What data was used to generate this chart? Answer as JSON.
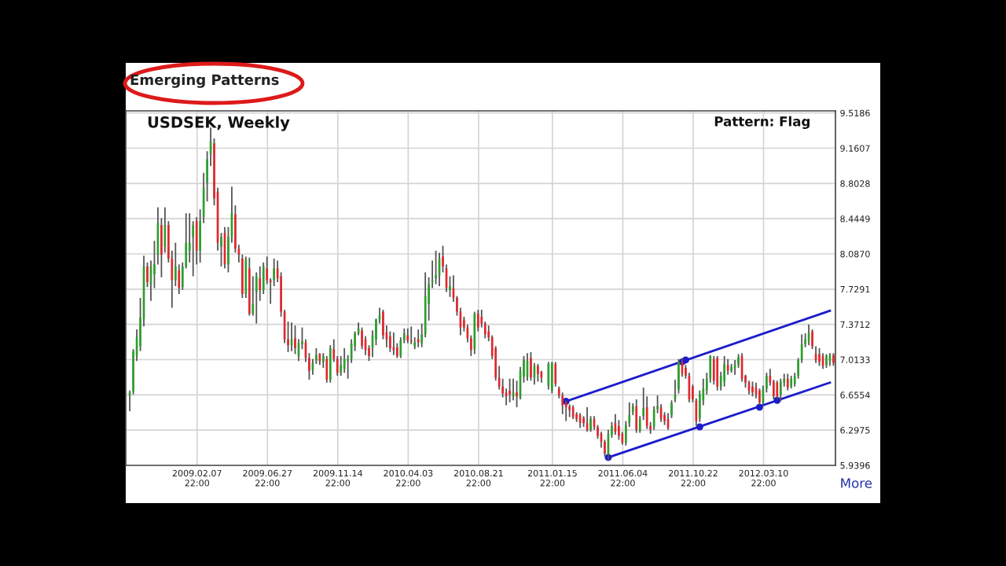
{
  "chart_data": {
    "type": "candlestick",
    "title": "USDSEK, Weekly",
    "annotations": [
      "Emerging Patterns",
      "Pattern: Flag",
      "More"
    ],
    "x": [
      "2008-09-27",
      "2008-10-04",
      "2008-10-11",
      "2008-10-18",
      "2008-10-25",
      "2008-11-01",
      "2008-11-08",
      "2008-11-15",
      "2008-11-22",
      "2008-11-29",
      "2008-12-06",
      "2008-12-13",
      "2008-12-20",
      "2008-12-27",
      "2009-01-03",
      "2009-01-10",
      "2009-01-17",
      "2009-01-24",
      "2009-01-31",
      "2009-02-07",
      "2009-02-14",
      "2009-02-21",
      "2009-02-28",
      "2009-03-07",
      "2009-03-14",
      "2009-03-21",
      "2009-03-28",
      "2009-04-04",
      "2009-04-11",
      "2009-04-18",
      "2009-04-25",
      "2009-05-02",
      "2009-05-09",
      "2009-05-16",
      "2009-05-23",
      "2009-05-30",
      "2009-06-06",
      "2009-06-13",
      "2009-06-20",
      "2009-06-27",
      "2009-07-04",
      "2009-07-11",
      "2009-07-18",
      "2009-07-25",
      "2009-08-01",
      "2009-08-08",
      "2009-08-15",
      "2009-08-22",
      "2009-08-29",
      "2009-09-05",
      "2009-09-12",
      "2009-09-19",
      "2009-09-26",
      "2009-10-03",
      "2009-10-10",
      "2009-10-17",
      "2009-10-24",
      "2009-10-31",
      "2009-11-07",
      "2009-11-14",
      "2009-11-21",
      "2009-11-28",
      "2009-12-05",
      "2009-12-12",
      "2009-12-19",
      "2009-12-26",
      "2010-01-02",
      "2010-01-09",
      "2010-01-16",
      "2010-01-23",
      "2010-01-30",
      "2010-02-06",
      "2010-02-13",
      "2010-02-20",
      "2010-02-27",
      "2010-03-06",
      "2010-03-13",
      "2010-03-20",
      "2010-03-27",
      "2010-04-03",
      "2010-04-10",
      "2010-04-17",
      "2010-04-24",
      "2010-05-01",
      "2010-05-08",
      "2010-05-15",
      "2010-05-22",
      "2010-05-29",
      "2010-06-05",
      "2010-06-12",
      "2010-06-19",
      "2010-06-26",
      "2010-07-03",
      "2010-07-10",
      "2010-07-17",
      "2010-07-24",
      "2010-07-31",
      "2010-08-07",
      "2010-08-14",
      "2010-08-21",
      "2010-08-28",
      "2010-09-04",
      "2010-09-11",
      "2010-09-18",
      "2010-09-25",
      "2010-10-02",
      "2010-10-09",
      "2010-10-16",
      "2010-10-23",
      "2010-10-30",
      "2010-11-06",
      "2010-11-13",
      "2010-11-20",
      "2010-11-27",
      "2010-12-04",
      "2010-12-11",
      "2010-12-18",
      "2010-12-25",
      "2011-01-08",
      "2011-01-15",
      "2011-01-22",
      "2011-01-29",
      "2011-02-05",
      "2011-02-12",
      "2011-02-19",
      "2011-02-26",
      "2011-03-05",
      "2011-03-12",
      "2011-03-19",
      "2011-03-26",
      "2011-04-02",
      "2011-04-09",
      "2011-04-16",
      "2011-04-23",
      "2011-04-30",
      "2011-05-07",
      "2011-05-14",
      "2011-05-21",
      "2011-05-28",
      "2011-06-04",
      "2011-06-11",
      "2011-06-18",
      "2011-06-25",
      "2011-07-02",
      "2011-07-09",
      "2011-07-16",
      "2011-07-23",
      "2011-07-30",
      "2011-08-06",
      "2011-08-13",
      "2011-08-20",
      "2011-08-27",
      "2011-09-03",
      "2011-09-10",
      "2011-09-17",
      "2011-09-24",
      "2011-10-01",
      "2011-10-08",
      "2011-10-15",
      "2011-10-22",
      "2011-10-29",
      "2011-11-05",
      "2011-11-12",
      "2011-11-19",
      "2011-11-26",
      "2011-12-03",
      "2011-12-10",
      "2011-12-17",
      "2011-12-24",
      "2011-12-31",
      "2012-01-07",
      "2012-01-14",
      "2012-01-21",
      "2012-01-28",
      "2012-02-04",
      "2012-02-11",
      "2012-02-18",
      "2012-02-25",
      "2012-03-03",
      "2012-03-10",
      "2012-03-17",
      "2012-03-24",
      "2012-03-31",
      "2012-04-07",
      "2012-04-14",
      "2012-04-21",
      "2012-04-28",
      "2012-05-05",
      "2012-05-12",
      "2012-05-19",
      "2012-05-26",
      "2012-06-02",
      "2012-06-09",
      "2012-06-16",
      "2012-06-23",
      "2012-06-30",
      "2012-07-07",
      "2012-07-14",
      "2012-07-21",
      "2012-07-28"
    ],
    "ohlc": [
      [
        6.65,
        6.7,
        6.49,
        6.68
      ],
      [
        6.69,
        7.12,
        6.66,
        7.1
      ],
      [
        7.05,
        7.32,
        7.0,
        7.24
      ],
      [
        7.15,
        7.64,
        7.1,
        7.44
      ],
      [
        7.43,
        8.07,
        7.35,
        7.96
      ],
      [
        7.96,
        8.0,
        7.75,
        7.8
      ],
      [
        7.78,
        8.02,
        7.61,
        7.96
      ],
      [
        7.88,
        8.22,
        7.74,
        7.98
      ],
      [
        8.08,
        8.56,
        7.98,
        8.4
      ],
      [
        8.38,
        8.45,
        7.85,
        8.08
      ],
      [
        8.16,
        8.56,
        8.1,
        8.38
      ],
      [
        8.38,
        8.42,
        8.0,
        8.04
      ],
      [
        8.04,
        8.12,
        7.54,
        7.82
      ],
      [
        7.82,
        8.2,
        7.76,
        7.96
      ],
      [
        7.92,
        7.98,
        7.68,
        7.74
      ],
      [
        7.75,
        8.0,
        7.72,
        7.96
      ],
      [
        7.96,
        8.5,
        7.94,
        8.2
      ],
      [
        8.12,
        8.5,
        8.0,
        8.2
      ],
      [
        8.26,
        8.42,
        7.86,
        8.38
      ],
      [
        8.42,
        8.46,
        7.98,
        8.12
      ],
      [
        8.12,
        8.54,
        8.0,
        8.42
      ],
      [
        8.46,
        8.91,
        8.4,
        8.76
      ],
      [
        8.81,
        9.13,
        8.62,
        9.05
      ],
      [
        9.1,
        9.37,
        8.98,
        9.23
      ],
      [
        9.21,
        9.26,
        8.58,
        8.65
      ],
      [
        8.72,
        8.76,
        8.12,
        8.2
      ],
      [
        8.16,
        8.3,
        7.96,
        8.26
      ],
      [
        8.3,
        8.36,
        7.94,
        7.98
      ],
      [
        7.98,
        8.36,
        7.9,
        8.26
      ],
      [
        8.26,
        8.77,
        8.2,
        8.5
      ],
      [
        8.49,
        8.58,
        8.1,
        8.14
      ],
      [
        8.14,
        8.18,
        8.0,
        8.08
      ],
      [
        8.04,
        8.08,
        7.64,
        7.68
      ],
      [
        7.68,
        8.06,
        7.64,
        8.03
      ],
      [
        7.94,
        8.05,
        7.46,
        7.48
      ],
      [
        7.48,
        7.86,
        7.46,
        7.58
      ],
      [
        7.7,
        7.9,
        7.38,
        7.86
      ],
      [
        7.84,
        7.96,
        7.61,
        7.72
      ],
      [
        7.72,
        8.0,
        7.68,
        7.96
      ],
      [
        7.94,
        8.06,
        7.78,
        7.82
      ],
      [
        7.82,
        7.84,
        7.58,
        7.8
      ],
      [
        7.82,
        8.04,
        7.76,
        7.94
      ],
      [
        7.94,
        8.02,
        7.8,
        7.84
      ],
      [
        7.86,
        7.9,
        7.45,
        7.5
      ],
      [
        7.5,
        7.52,
        7.18,
        7.22
      ],
      [
        7.22,
        7.4,
        7.09,
        7.16
      ],
      [
        7.16,
        7.39,
        7.1,
        7.22
      ],
      [
        7.23,
        7.36,
        7.07,
        7.13
      ],
      [
        7.05,
        7.22,
        7.0,
        7.18
      ],
      [
        7.17,
        7.34,
        7.12,
        7.2
      ],
      [
        7.19,
        7.22,
        6.99,
        7.03
      ],
      [
        7.03,
        7.08,
        6.81,
        6.9
      ],
      [
        6.91,
        7.02,
        6.86,
        6.98
      ],
      [
        7.0,
        7.13,
        6.97,
        7.06
      ],
      [
        7.07,
        7.08,
        6.96,
        7.0
      ],
      [
        6.99,
        7.08,
        6.93,
        7.05
      ],
      [
        7.02,
        7.05,
        6.78,
        6.81
      ],
      [
        6.81,
        7.16,
        6.78,
        7.13
      ],
      [
        7.12,
        7.22,
        6.99,
        7.02
      ],
      [
        7.02,
        7.05,
        6.85,
        6.88
      ],
      [
        6.88,
        7.05,
        6.85,
        6.96
      ],
      [
        6.92,
        7.13,
        6.88,
        7.02
      ],
      [
        7.0,
        7.06,
        6.82,
        7.02
      ],
      [
        7.02,
        7.22,
        6.98,
        7.18
      ],
      [
        7.15,
        7.3,
        7.1,
        7.28
      ],
      [
        7.28,
        7.39,
        7.26,
        7.33
      ],
      [
        7.31,
        7.34,
        7.12,
        7.15
      ],
      [
        7.22,
        7.25,
        7.06,
        7.11
      ],
      [
        7.13,
        7.16,
        7.0,
        7.05
      ],
      [
        7.13,
        7.31,
        7.04,
        7.26
      ],
      [
        7.22,
        7.43,
        7.16,
        7.42
      ],
      [
        7.42,
        7.54,
        7.38,
        7.46
      ],
      [
        7.5,
        7.52,
        7.22,
        7.26
      ],
      [
        7.29,
        7.36,
        7.14,
        7.22
      ],
      [
        7.25,
        7.3,
        7.09,
        7.13
      ],
      [
        7.14,
        7.29,
        7.06,
        7.11
      ],
      [
        7.14,
        7.18,
        7.03,
        7.05
      ],
      [
        7.05,
        7.24,
        7.03,
        7.21
      ],
      [
        7.21,
        7.33,
        7.18,
        7.28
      ],
      [
        7.26,
        7.33,
        7.18,
        7.21
      ],
      [
        7.21,
        7.35,
        7.17,
        7.2
      ],
      [
        7.15,
        7.24,
        7.12,
        7.19
      ],
      [
        7.22,
        7.32,
        7.14,
        7.19
      ],
      [
        7.18,
        7.38,
        7.14,
        7.27
      ],
      [
        7.27,
        7.9,
        7.24,
        7.66
      ],
      [
        7.58,
        7.85,
        7.41,
        7.78
      ],
      [
        7.8,
        8.02,
        7.74,
        7.82
      ],
      [
        7.84,
        8.12,
        7.78,
        7.87
      ],
      [
        7.87,
        8.1,
        7.76,
        8.04
      ],
      [
        8.06,
        8.17,
        7.9,
        7.96
      ],
      [
        7.94,
        7.98,
        7.7,
        7.74
      ],
      [
        7.72,
        7.86,
        7.65,
        7.76
      ],
      [
        7.74,
        7.87,
        7.6,
        7.64
      ],
      [
        7.64,
        7.66,
        7.46,
        7.5
      ],
      [
        7.5,
        7.54,
        7.26,
        7.34
      ],
      [
        7.42,
        7.45,
        7.3,
        7.34
      ],
      [
        7.34,
        7.37,
        7.19,
        7.23
      ],
      [
        7.23,
        7.26,
        7.05,
        7.11
      ],
      [
        7.12,
        7.5,
        7.07,
        7.48
      ],
      [
        7.48,
        7.52,
        7.3,
        7.34
      ],
      [
        7.45,
        7.52,
        7.34,
        7.38
      ],
      [
        7.38,
        7.4,
        7.23,
        7.27
      ],
      [
        7.3,
        7.36,
        7.2,
        7.24
      ],
      [
        7.24,
        7.26,
        7.02,
        7.05
      ],
      [
        7.13,
        7.15,
        6.8,
        6.83
      ],
      [
        6.83,
        6.95,
        6.71,
        6.74
      ],
      [
        6.74,
        6.82,
        6.63,
        6.67
      ],
      [
        6.68,
        6.72,
        6.55,
        6.64
      ],
      [
        6.7,
        6.82,
        6.58,
        6.66
      ],
      [
        6.64,
        6.82,
        6.6,
        6.68
      ],
      [
        6.68,
        6.8,
        6.53,
        6.64
      ],
      [
        6.63,
        6.94,
        6.61,
        6.9
      ],
      [
        6.84,
        7.05,
        6.78,
        7.01
      ],
      [
        6.84,
        7.08,
        6.8,
        7.0
      ],
      [
        7.03,
        7.09,
        6.8,
        6.83
      ],
      [
        6.83,
        6.98,
        6.76,
        6.95
      ],
      [
        6.95,
        6.97,
        6.79,
        6.87
      ],
      [
        6.89,
        6.9,
        6.78,
        6.83
      ],
      [
        6.75,
        6.99,
        6.71,
        6.97
      ],
      [
        6.7,
        6.99,
        6.67,
        6.98
      ],
      [
        6.97,
        6.99,
        6.74,
        6.77
      ],
      [
        6.72,
        6.74,
        6.62,
        6.65
      ],
      [
        6.65,
        6.68,
        6.46,
        6.55
      ],
      [
        6.58,
        6.6,
        6.39,
        6.53
      ],
      [
        6.54,
        6.56,
        6.43,
        6.5
      ],
      [
        6.53,
        6.55,
        6.41,
        6.43
      ],
      [
        6.46,
        6.48,
        6.38,
        6.41
      ],
      [
        6.45,
        6.47,
        6.32,
        6.37
      ],
      [
        6.42,
        6.44,
        6.33,
        6.37
      ],
      [
        6.37,
        6.53,
        6.28,
        6.3
      ],
      [
        6.3,
        6.44,
        6.28,
        6.41
      ],
      [
        6.41,
        6.44,
        6.3,
        6.33
      ],
      [
        6.33,
        6.35,
        6.21,
        6.24
      ],
      [
        6.26,
        6.28,
        6.12,
        6.18
      ],
      [
        6.18,
        6.2,
        6.03,
        6.06
      ],
      [
        6.05,
        6.3,
        5.99,
        6.26
      ],
      [
        6.25,
        6.38,
        6.22,
        6.34
      ],
      [
        6.37,
        6.46,
        6.25,
        6.28
      ],
      [
        6.34,
        6.4,
        6.2,
        6.24
      ],
      [
        6.26,
        6.28,
        6.15,
        6.17
      ],
      [
        6.17,
        6.39,
        6.14,
        6.35
      ],
      [
        6.37,
        6.58,
        6.33,
        6.45
      ],
      [
        6.48,
        6.57,
        6.45,
        6.54
      ],
      [
        6.54,
        6.61,
        6.27,
        6.3
      ],
      [
        6.29,
        6.44,
        6.27,
        6.41
      ],
      [
        6.44,
        6.73,
        6.4,
        6.52
      ],
      [
        6.53,
        6.64,
        6.31,
        6.34
      ],
      [
        6.34,
        6.38,
        6.26,
        6.3
      ],
      [
        6.33,
        6.54,
        6.3,
        6.51
      ],
      [
        6.51,
        6.65,
        6.47,
        6.54
      ],
      [
        6.53,
        6.56,
        6.38,
        6.41
      ],
      [
        6.45,
        6.48,
        6.35,
        6.39
      ],
      [
        6.41,
        6.47,
        6.3,
        6.32
      ],
      [
        6.45,
        6.6,
        6.42,
        6.57
      ],
      [
        6.61,
        6.81,
        6.58,
        6.66
      ],
      [
        6.71,
        7.02,
        6.67,
        6.99
      ],
      [
        6.99,
        7.03,
        6.84,
        6.87
      ],
      [
        6.93,
        6.96,
        6.82,
        6.85
      ],
      [
        6.85,
        6.88,
        6.58,
        6.61
      ],
      [
        6.74,
        6.76,
        6.58,
        6.61
      ],
      [
        6.6,
        6.62,
        6.34,
        6.39
      ],
      [
        6.42,
        6.7,
        6.38,
        6.66
      ],
      [
        6.6,
        6.82,
        6.55,
        6.72
      ],
      [
        6.7,
        6.88,
        6.66,
        6.82
      ],
      [
        6.82,
        7.06,
        6.78,
        7.05
      ],
      [
        7.02,
        7.05,
        6.76,
        6.8
      ],
      [
        7.03,
        7.05,
        6.7,
        6.74
      ],
      [
        6.74,
        6.89,
        6.7,
        6.85
      ],
      [
        6.79,
        7.05,
        6.74,
        6.97
      ],
      [
        6.96,
        7.02,
        6.86,
        6.9
      ],
      [
        6.9,
        6.97,
        6.88,
        6.94
      ],
      [
        6.93,
        7.01,
        6.86,
        6.96
      ],
      [
        6.96,
        7.07,
        6.93,
        7.04
      ],
      [
        7.05,
        7.08,
        6.79,
        6.82
      ],
      [
        6.85,
        6.86,
        6.73,
        6.78
      ],
      [
        6.78,
        6.8,
        6.66,
        6.7
      ],
      [
        6.74,
        6.79,
        6.64,
        6.68
      ],
      [
        6.73,
        6.78,
        6.62,
        6.66
      ],
      [
        6.7,
        6.72,
        6.55,
        6.58
      ],
      [
        6.58,
        6.75,
        6.55,
        6.72
      ],
      [
        6.72,
        6.88,
        6.68,
        6.85
      ],
      [
        6.85,
        6.92,
        6.75,
        6.78
      ],
      [
        6.79,
        6.81,
        6.61,
        6.64
      ],
      [
        6.78,
        6.8,
        6.61,
        6.64
      ],
      [
        6.66,
        6.82,
        6.59,
        6.79
      ],
      [
        6.78,
        6.87,
        6.74,
        6.82
      ],
      [
        6.82,
        6.87,
        6.7,
        6.73
      ],
      [
        6.74,
        6.85,
        6.72,
        6.82
      ],
      [
        6.77,
        6.88,
        6.74,
        6.85
      ],
      [
        6.85,
        7.03,
        6.82,
        7.01
      ],
      [
        7.01,
        7.27,
        6.98,
        7.17
      ],
      [
        7.17,
        7.28,
        7.14,
        7.22
      ],
      [
        7.2,
        7.37,
        7.16,
        7.28
      ],
      [
        7.3,
        7.32,
        7.12,
        7.15
      ],
      [
        7.07,
        7.15,
        6.98,
        7.01
      ],
      [
        7.07,
        7.13,
        6.95,
        6.99
      ],
      [
        7.05,
        7.08,
        6.92,
        6.95
      ],
      [
        6.96,
        7.07,
        6.93,
        7.05
      ],
      [
        7.0,
        7.08,
        6.95,
        7.06
      ],
      [
        7.06,
        7.08,
        6.95,
        6.98
      ]
    ],
    "xlim": [
      "2008-09-19",
      "2012-08-01"
    ],
    "xticks": [
      {
        "value": "2009-02-07T22:00",
        "label": "2009.02.07\n22:00"
      },
      {
        "value": "2009-06-27T22:00",
        "label": "2009.06.27\n22:00"
      },
      {
        "value": "2009-11-14T22:00",
        "label": "2009.11.14\n22:00"
      },
      {
        "value": "2010-04-03T22:00",
        "label": "2010.04.03\n22:00"
      },
      {
        "value": "2010-08-21T22:00",
        "label": "2010.08.21\n22:00"
      },
      {
        "value": "2011-01-15T22:00",
        "label": "2011.01.15\n22:00"
      },
      {
        "value": "2011-06-04T22:00",
        "label": "2011.06.04\n22:00"
      },
      {
        "value": "2011-10-22T22:00",
        "label": "2011.10.22\n22:00"
      },
      {
        "value": "2012-03-10T22:00",
        "label": "2012.03.10\n22:00"
      }
    ],
    "ylim": [
      5.9396,
      9.54
    ],
    "yticks": [
      5.9396,
      6.2975,
      6.6554,
      7.0133,
      7.3712,
      7.7291,
      {
        "value": 8.087,
        "label": "8.0870"
      },
      8.4449,
      8.8028,
      9.1607,
      9.5186
    ],
    "grid": true,
    "series": [
      {
        "type": "line",
        "color": "#1c1ccc",
        "x": [
          "2011-02-12",
          "2012-07-21"
        ],
        "values": [
          6.59,
          7.51
        ]
      },
      {
        "type": "line",
        "color": "#1c1ccc",
        "x": [
          "2011-05-07",
          "2012-07-21"
        ],
        "values": [
          6.02,
          6.78
        ]
      },
      {
        "type": "scatter",
        "color": "#1c1ccc",
        "marker": "circle",
        "x": [
          "2011-02-12",
          "2011-10-01",
          "2011-10-08"
        ],
        "values": [
          6.59,
          6.99,
          7.01
        ]
      },
      {
        "type": "scatter",
        "color": "#1c1ccc",
        "marker": "circle",
        "x": [
          "2011-05-07",
          "2011-11-05",
          "2012-03-03",
          "2012-04-07"
        ],
        "values": [
          6.02,
          6.33,
          6.53,
          6.6
        ]
      }
    ]
  }
}
